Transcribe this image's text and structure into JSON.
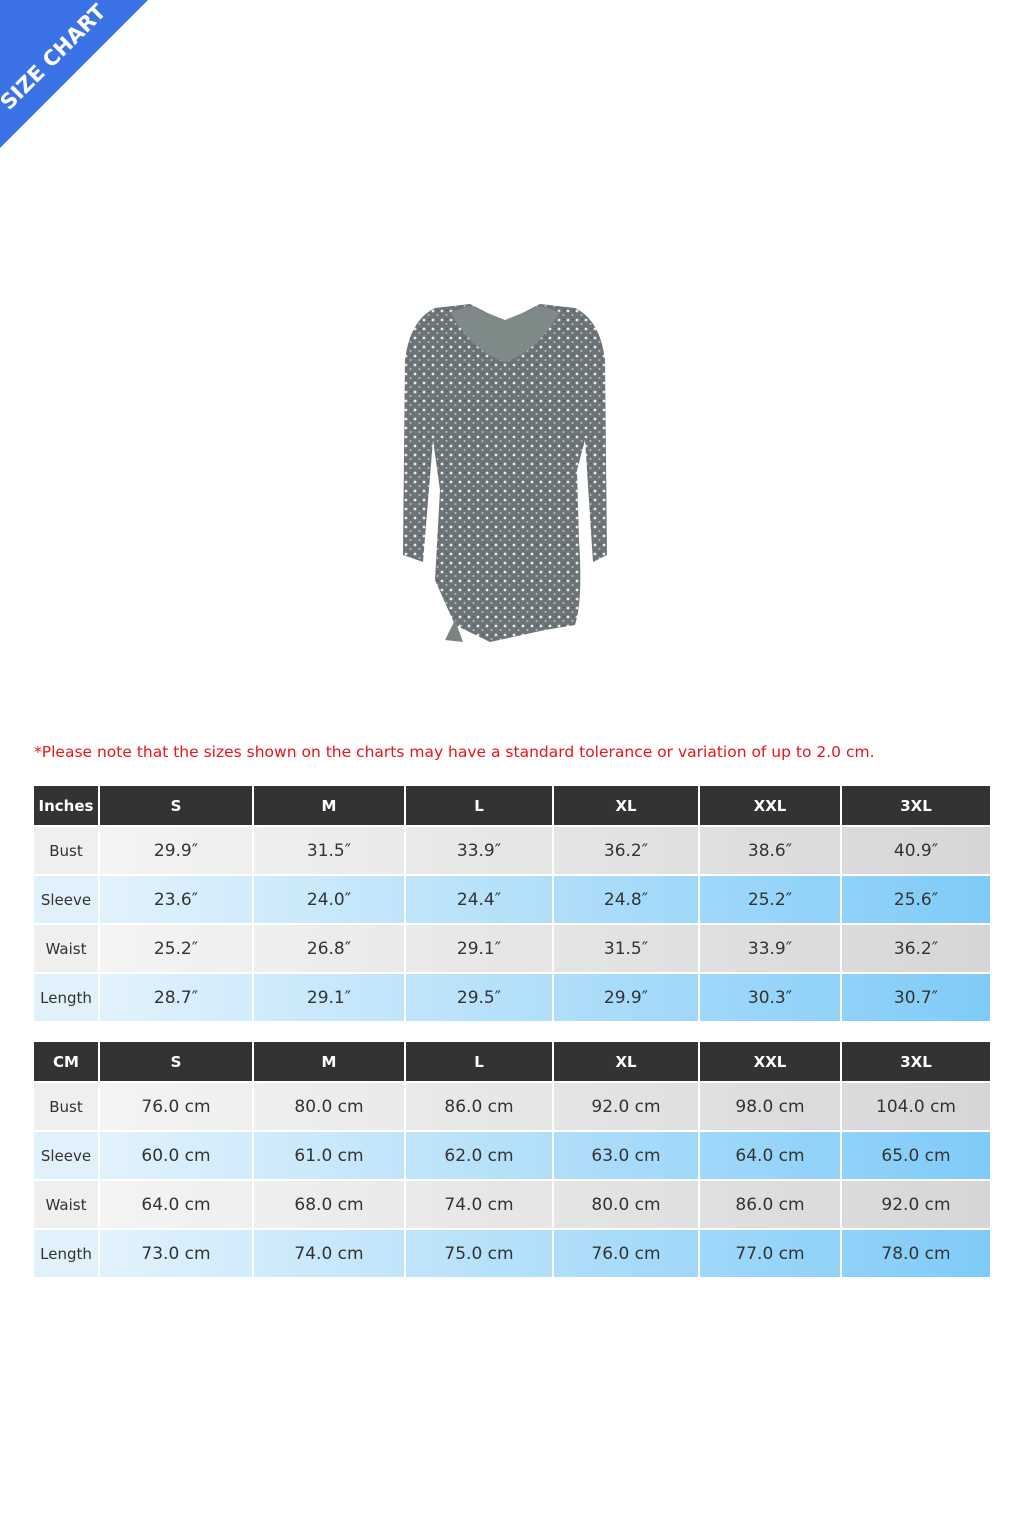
{
  "banner": {
    "label": "SIZE CHART",
    "color": "#3b73e6"
  },
  "note": "*Please note that the sizes shown on the charts may have a standard tolerance or variation of up to 2.0 cm.",
  "inches_table": {
    "corner": "Inches",
    "sizes": [
      "S",
      "M",
      "L",
      "XL",
      "XXL",
      "3XL"
    ],
    "rows": [
      {
        "label": "Bust",
        "values": [
          "29.9″",
          "31.5″",
          "33.9″",
          "36.2″",
          "38.6″",
          "40.9″"
        ]
      },
      {
        "label": "Sleeve",
        "values": [
          "23.6″",
          "24.0″",
          "24.4″",
          "24.8″",
          "25.2″",
          "25.6″"
        ]
      },
      {
        "label": "Waist",
        "values": [
          "25.2″",
          "26.8″",
          "29.1″",
          "31.5″",
          "33.9″",
          "36.2″"
        ]
      },
      {
        "label": "Length",
        "values": [
          "28.7″",
          "29.1″",
          "29.5″",
          "29.9″",
          "30.3″",
          "30.7″"
        ]
      }
    ]
  },
  "cm_table": {
    "corner": "CM",
    "sizes": [
      "S",
      "M",
      "L",
      "XL",
      "XXL",
      "3XL"
    ],
    "rows": [
      {
        "label": "Bust",
        "values": [
          "76.0 cm",
          "80.0 cm",
          "86.0 cm",
          "92.0 cm",
          "98.0 cm",
          "104.0 cm"
        ]
      },
      {
        "label": "Sleeve",
        "values": [
          "60.0 cm",
          "61.0 cm",
          "62.0 cm",
          "63.0 cm",
          "64.0 cm",
          "65.0 cm"
        ]
      },
      {
        "label": "Waist",
        "values": [
          "64.0 cm",
          "68.0 cm",
          "74.0 cm",
          "80.0 cm",
          "86.0 cm",
          "92.0 cm"
        ]
      },
      {
        "label": "Length",
        "values": [
          "73.0 cm",
          "74.0 cm",
          "75.0 cm",
          "76.0 cm",
          "77.0 cm",
          "78.0 cm"
        ]
      }
    ]
  }
}
